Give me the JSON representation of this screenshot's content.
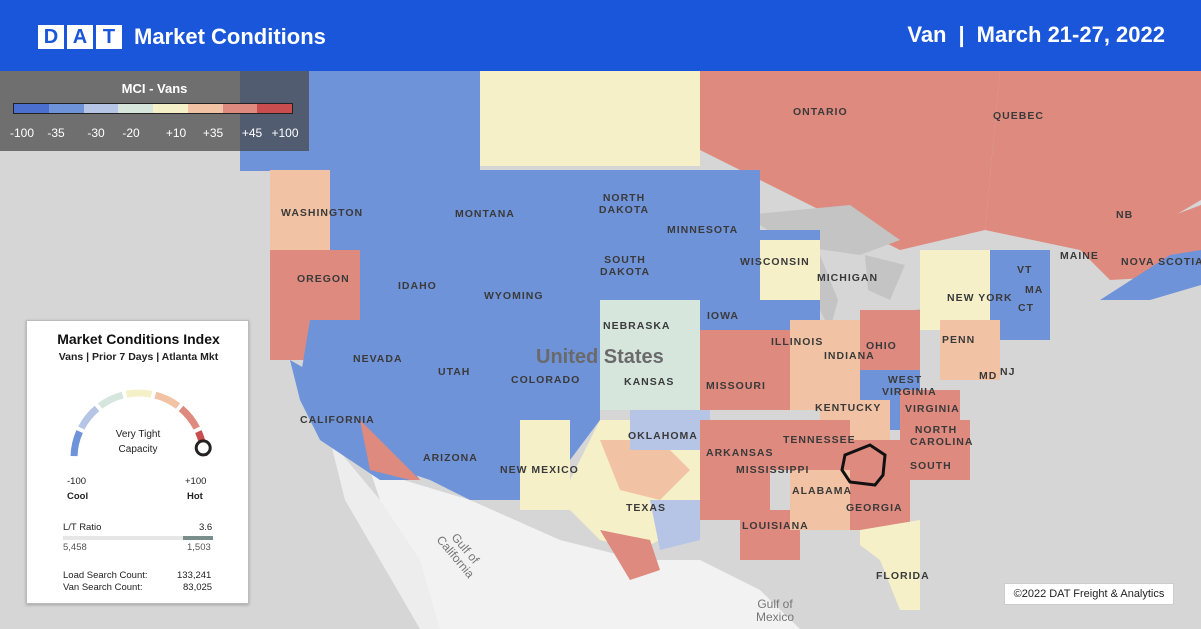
{
  "header": {
    "logo_letters": [
      "D",
      "A",
      "T"
    ],
    "title": "Market Conditions",
    "equipment": "Van",
    "separator": "|",
    "date_range": "March 21-27, 2022",
    "bg_color": "#1a56d9"
  },
  "legend": {
    "title": "MCI - Vans",
    "colors": [
      "#4a6fcf",
      "#6f93d9",
      "#b6c5e6",
      "#d6e6dd",
      "#f5f0c8",
      "#f1c3a4",
      "#de8a7e",
      "#c94c4f"
    ],
    "ticks": [
      "-100",
      "-35",
      "-30",
      "-20",
      "+10",
      "+35",
      "+45",
      "+100"
    ]
  },
  "map_labels": {
    "regions": [
      "ONTARIO",
      "QUEBEC",
      "NB",
      "NOVA SCOTIA",
      "WASHINGTON",
      "OREGON",
      "IDAHO",
      "MONTANA",
      "NORTH DAKOTA",
      "MINNESOTA",
      "SOUTH DAKOTA",
      "WISCONSIN",
      "MICHIGAN",
      "WYOMING",
      "NEBRASKA",
      "IOWA",
      "NEVADA",
      "UTAH",
      "COLORADO",
      "KANSAS",
      "MISSOURI",
      "ILLINOIS",
      "INDIANA",
      "OHIO",
      "PENN",
      "NEW YORK",
      "MAINE",
      "NJ",
      "WEST VIRGINIA",
      "VIRGINIA",
      "KENTUCKY",
      "TENNESSEE",
      "NORTH CAROLINA",
      "SOUTH",
      "CALIFORNIA",
      "ARIZONA",
      "NEW MEXICO",
      "OKLAHOMA",
      "ARKANSAS",
      "MISSISSIPPI",
      "ALABAMA",
      "GEORGIA",
      "TEXAS",
      "LOUISIANA",
      "FLORIDA",
      "VT",
      "MA",
      "CT",
      "MD"
    ],
    "country": "United States",
    "water": [
      "Gulf of California",
      "Gulf of Mexico"
    ]
  },
  "card": {
    "title": "Market Conditions Index",
    "subtitle": "Vans | Prior 7 Days | Atlanta Mkt",
    "gauge_status": "Very Tight Capacity",
    "gauge_value": 0.95,
    "gauge_colors": [
      "#6f93d9",
      "#b6c5e6",
      "#d6e6dd",
      "#f5f0c8",
      "#f1c3a4",
      "#de8a7e",
      "#c94c4f"
    ],
    "min_label": "-100",
    "min_caption": "Cool",
    "max_label": "+100",
    "max_caption": "Hot",
    "ratio_label": "L/T Ratio",
    "ratio_value": "3.6",
    "loads": "5,458",
    "trucks": "1,503",
    "load_search_label": "Load Search Count:",
    "load_search_value": "133,241",
    "van_search_label": "Van Search Count:",
    "van_search_value": "83,025"
  },
  "copyright": "©2022 DAT Freight & Analytics"
}
